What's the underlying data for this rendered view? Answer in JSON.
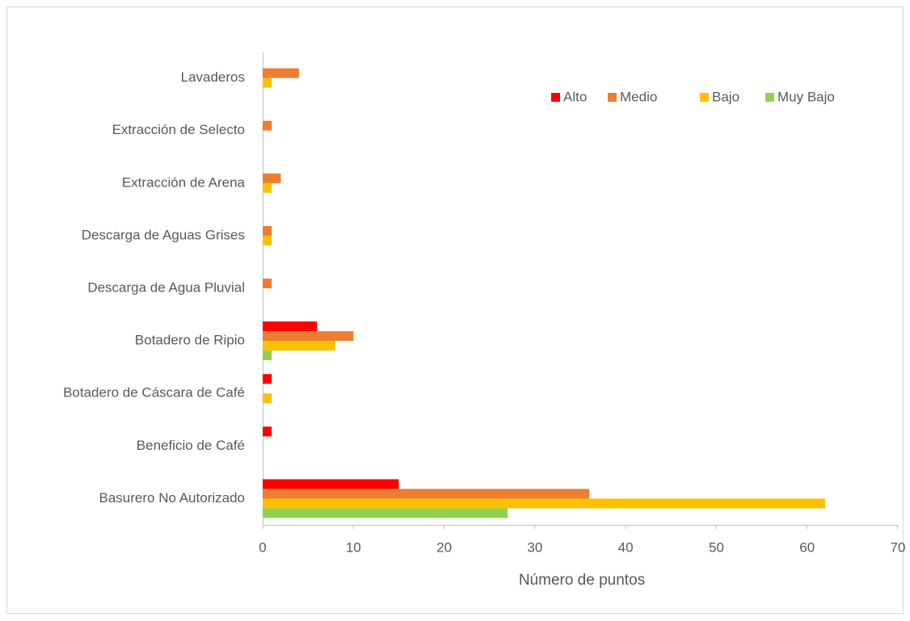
{
  "chart_data": {
    "type": "barh",
    "xlabel": "Número de puntos",
    "categories": [
      "Basurero No Autorizado",
      "Beneficio de Café",
      "Botadero de Cáscara de Café",
      "Botadero de Ripio",
      "Descarga de Agua Pluvial",
      "Descarga de Aguas Grises",
      "Extracción de Arena",
      "Extracción de Selecto",
      "Lavaderos"
    ],
    "series": [
      {
        "name": "Alto",
        "color": "#ff0000",
        "values": [
          15,
          1,
          1,
          6,
          0,
          0,
          0,
          0,
          0
        ]
      },
      {
        "name": "Medio",
        "color": "#ed7d31",
        "values": [
          36,
          0,
          0,
          10,
          1,
          1,
          2,
          1,
          4
        ]
      },
      {
        "name": "Bajo",
        "color": "#ffc000",
        "values": [
          62,
          0,
          1,
          8,
          0,
          1,
          1,
          0,
          1
        ]
      },
      {
        "name": "Muy Bajo",
        "color": "#92d050",
        "values": [
          27,
          0,
          0,
          1,
          0,
          0,
          0,
          0,
          0
        ]
      }
    ],
    "xlim": [
      0,
      70
    ],
    "xticks": [
      0,
      10,
      20,
      30,
      40,
      50,
      60,
      70
    ],
    "legend": "top-right"
  }
}
